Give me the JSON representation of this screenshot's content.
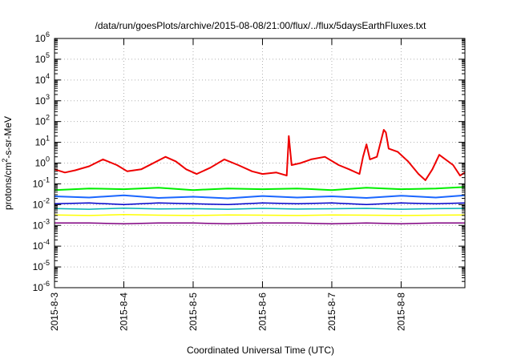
{
  "chart_data": {
    "type": "line",
    "title": "/data/run/goesPlots/archive/2015-08-08/21:00/flux/../flux/5daysEarthFluxes.txt",
    "xlabel": "Coordinated Universal Time (UTC)",
    "ylabel": {
      "prefix": "protons/cm",
      "sup": "2",
      "suffix": "-s-sr-MeV"
    },
    "yscale": "log",
    "ylim": [
      1e-06,
      1000000.0
    ],
    "xlim": [
      0,
      5.92
    ],
    "grid": true,
    "y_ticks": [
      {
        "exp": "-6",
        "value": 1e-06
      },
      {
        "exp": "-5",
        "value": 1e-05
      },
      {
        "exp": "-4",
        "value": 0.0001
      },
      {
        "exp": "-3",
        "value": 0.001
      },
      {
        "exp": "-2",
        "value": 0.01
      },
      {
        "exp": "-1",
        "value": 0.1
      },
      {
        "exp": "0",
        "value": 1
      },
      {
        "exp": "1",
        "value": 10
      },
      {
        "exp": "2",
        "value": 100
      },
      {
        "exp": "3",
        "value": 1000
      },
      {
        "exp": "4",
        "value": 10000
      },
      {
        "exp": "5",
        "value": 100000
      },
      {
        "exp": "6",
        "value": 1000000
      }
    ],
    "x_ticks": [
      {
        "label": "2015-8-3",
        "value": 0
      },
      {
        "label": "2015-8-4",
        "value": 1
      },
      {
        "label": "2015-8-5",
        "value": 2
      },
      {
        "label": "2015-8-6",
        "value": 3
      },
      {
        "label": "2015-8-7",
        "value": 4
      },
      {
        "label": "2015-8-8",
        "value": 5
      }
    ],
    "series": [
      {
        "color": "#800080",
        "width": 1.5,
        "x": [
          0,
          0.5,
          1,
          1.5,
          2,
          2.5,
          3,
          3.5,
          4,
          4.5,
          5,
          5.5,
          5.92
        ],
        "y": [
          0.0013,
          0.0013,
          0.0012,
          0.0013,
          0.0013,
          0.0012,
          0.0013,
          0.0013,
          0.0012,
          0.0013,
          0.0012,
          0.0013,
          0.0013
        ]
      },
      {
        "color": "#ffff00",
        "width": 1.5,
        "x": [
          0,
          0.5,
          1,
          1.5,
          2,
          2.5,
          3,
          3.5,
          4,
          4.5,
          5,
          5.5,
          5.92
        ],
        "y": [
          0.0032,
          0.003,
          0.0033,
          0.0031,
          0.003,
          0.0032,
          0.0031,
          0.003,
          0.0032,
          0.0031,
          0.003,
          0.0031,
          0.0032
        ]
      },
      {
        "color": "#00b3b3",
        "width": 1.5,
        "x": [
          0,
          0.5,
          1,
          1.5,
          2,
          2.5,
          3,
          3.5,
          4,
          4.5,
          5,
          5.5,
          5.92
        ],
        "y": [
          0.0065,
          0.006,
          0.0068,
          0.0062,
          0.0064,
          0.006,
          0.0066,
          0.0061,
          0.0063,
          0.0066,
          0.006,
          0.0064,
          0.0066
        ]
      },
      {
        "color": "#0000cc",
        "width": 1.5,
        "x": [
          0,
          0.5,
          1,
          1.5,
          2,
          2.5,
          3,
          3.5,
          4,
          4.5,
          5,
          5.5,
          5.92
        ],
        "y": [
          0.011,
          0.012,
          0.01,
          0.012,
          0.011,
          0.01,
          0.012,
          0.011,
          0.012,
          0.01,
          0.012,
          0.011,
          0.012
        ]
      },
      {
        "color": "#1a66ff",
        "width": 2,
        "x": [
          0,
          0.5,
          1,
          1.5,
          2,
          2.5,
          3,
          3.5,
          4,
          4.5,
          5,
          5.5,
          5.92
        ],
        "y": [
          0.025,
          0.022,
          0.028,
          0.021,
          0.024,
          0.02,
          0.026,
          0.022,
          0.025,
          0.021,
          0.027,
          0.022,
          0.028
        ]
      },
      {
        "color": "#00ee00",
        "width": 2,
        "x": [
          0,
          0.5,
          1,
          1.5,
          2,
          2.5,
          3,
          3.5,
          4,
          4.5,
          5,
          5.5,
          5.92
        ],
        "y": [
          0.05,
          0.06,
          0.055,
          0.065,
          0.05,
          0.06,
          0.055,
          0.06,
          0.05,
          0.065,
          0.055,
          0.06,
          0.07
        ]
      },
      {
        "color": "#ee0000",
        "width": 2,
        "x": [
          0,
          0.15,
          0.3,
          0.5,
          0.7,
          0.9,
          1.05,
          1.25,
          1.4,
          1.6,
          1.75,
          1.9,
          2.05,
          2.25,
          2.45,
          2.65,
          2.85,
          3.0,
          3.2,
          3.35,
          3.38,
          3.42,
          3.55,
          3.7,
          3.9,
          4.1,
          4.25,
          4.4,
          4.45,
          4.5,
          4.55,
          4.65,
          4.75,
          4.78,
          4.82,
          4.95,
          5.1,
          5.25,
          5.35,
          5.45,
          5.55,
          5.75,
          5.85,
          5.92
        ],
        "y": [
          0.5,
          0.35,
          0.45,
          0.7,
          1.5,
          0.8,
          0.4,
          0.5,
          0.9,
          2.0,
          1.2,
          0.5,
          0.3,
          0.6,
          1.5,
          0.8,
          0.4,
          0.3,
          0.35,
          0.25,
          20.0,
          0.8,
          1.0,
          1.5,
          2.0,
          0.8,
          0.5,
          0.3,
          2.0,
          8.0,
          1.5,
          2.0,
          40.0,
          30.0,
          5.0,
          3.5,
          1.2,
          0.3,
          0.15,
          0.5,
          2.5,
          0.8,
          0.25,
          0.35
        ]
      }
    ]
  }
}
